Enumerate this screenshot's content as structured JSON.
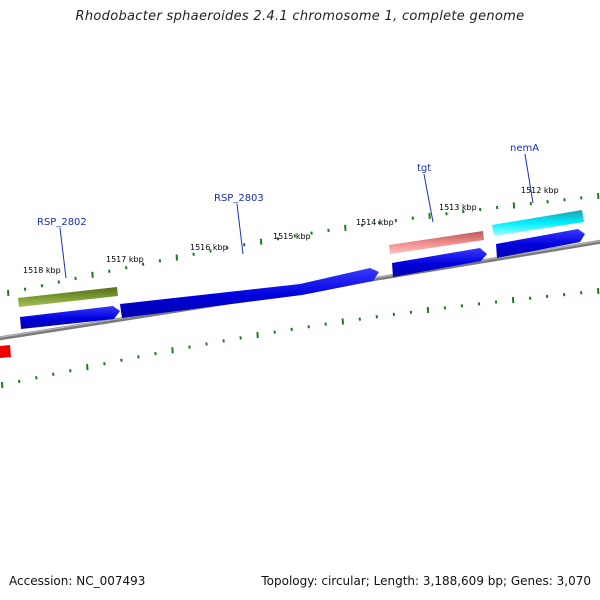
{
  "title": "Rhodobacter sphaeroides 2.4.1 chromosome 1, complete genome",
  "footer": {
    "accession": "Accession: NC_007493",
    "stats": "Topology: circular; Length: 3,188,609 bp; Genes: 3,070"
  },
  "ticks": [
    "1518 kbp",
    "1517 kbp",
    "1516 kbp",
    "1515 kbp",
    "1514 kbp",
    "1513 kbp",
    "1512 kbp"
  ],
  "gene_labels": [
    "RSP_2802",
    "RSP_2803",
    "tgt",
    "nemA"
  ],
  "colors": {
    "backbone": "#8a8a8a",
    "cds_forward": "#0000ee",
    "gene_olive": "#6b8e23",
    "gene_salmon": "#e87878",
    "gene_cyan": "#00e5ee",
    "gene_red": "#ff0000",
    "tick_mark": "#1f7a1f",
    "label_text": "#1a2fb0"
  }
}
